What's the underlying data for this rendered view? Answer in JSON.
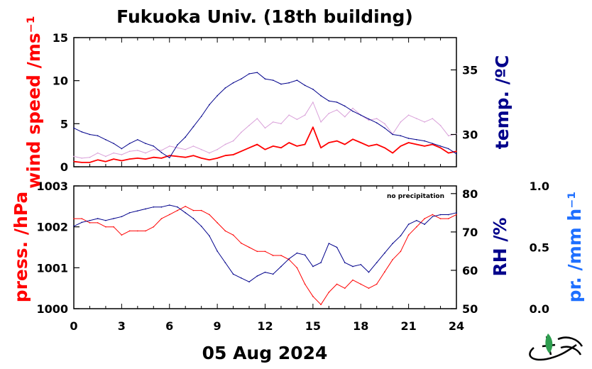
{
  "title": "Fukuoka Univ. (18th building)",
  "date": "05 Aug 2024",
  "precip_note": "no precipitation",
  "colors": {
    "wind": "#ff0000",
    "wind_raw": "#d9a0d9",
    "temp": "#00008b",
    "pressure": "#ff0000",
    "rh": "#00008b",
    "precip": "#1e6fff",
    "logo_green": "#2e9e4f"
  },
  "chart_data": [
    {
      "type": "line",
      "panel": "top",
      "xlim": [
        0,
        24
      ],
      "xticks": [
        0,
        3,
        6,
        9,
        12,
        15,
        18,
        21,
        24
      ],
      "y_left": {
        "label": "wind speed /ms⁻¹",
        "lim": [
          0,
          15
        ],
        "ticks": [
          0,
          5,
          10,
          15
        ]
      },
      "y_right": {
        "label": "temp. /ºC",
        "lim": [
          27.5,
          37.5
        ],
        "ticks": [
          30,
          35
        ]
      },
      "series": [
        {
          "axis": "left",
          "style": "10-min mean",
          "x": [
            0,
            0.5,
            1,
            1.5,
            2,
            2.5,
            3,
            3.5,
            4,
            4.5,
            5,
            5.5,
            6,
            6.5,
            7,
            7.5,
            8,
            8.5,
            9,
            9.5,
            10,
            10.5,
            11,
            11.5,
            12,
            12.5,
            13,
            13.5,
            14,
            14.5,
            15,
            15.5,
            16,
            16.5,
            17,
            17.5,
            18,
            18.5,
            19,
            19.5,
            20,
            20.5,
            21,
            21.5,
            22,
            22.5,
            23,
            23.5,
            24
          ],
          "values": [
            0.6,
            0.5,
            0.5,
            0.8,
            0.6,
            0.9,
            0.7,
            0.9,
            1.0,
            0.9,
            1.1,
            1.0,
            1.3,
            1.2,
            1.1,
            1.3,
            1.0,
            0.8,
            1.0,
            1.3,
            1.4,
            1.8,
            2.2,
            2.6,
            2.0,
            2.4,
            2.2,
            2.8,
            2.4,
            2.6,
            4.6,
            2.2,
            2.8,
            3.0,
            2.6,
            3.2,
            2.8,
            2.4,
            2.6,
            2.2,
            1.6,
            2.4,
            2.8,
            2.6,
            2.4,
            2.6,
            2.2,
            1.6,
            1.8
          ]
        },
        {
          "axis": "left",
          "style": "1-min peaks",
          "x": [
            0,
            0.5,
            1,
            1.5,
            2,
            2.5,
            3,
            3.5,
            4,
            4.5,
            5,
            5.5,
            6,
            6.5,
            7,
            7.5,
            8,
            8.5,
            9,
            9.5,
            10,
            10.5,
            11,
            11.5,
            12,
            12.5,
            13,
            13.5,
            14,
            14.5,
            15,
            15.5,
            16,
            16.5,
            17,
            17.5,
            18,
            18.5,
            19,
            19.5,
            20,
            20.5,
            21,
            21.5,
            22,
            22.5,
            23,
            23.5,
            24
          ],
          "values": [
            1.2,
            1.0,
            1.1,
            1.6,
            1.2,
            1.6,
            1.4,
            1.8,
            1.9,
            1.6,
            2.0,
            1.9,
            2.4,
            2.2,
            2.0,
            2.4,
            2.0,
            1.6,
            2.0,
            2.6,
            3.0,
            4.0,
            4.8,
            5.6,
            4.5,
            5.2,
            5.0,
            6.0,
            5.5,
            6.0,
            7.5,
            5.2,
            6.2,
            6.6,
            5.8,
            6.8,
            6.0,
            5.4,
            5.6,
            5.0,
            3.8,
            5.2,
            6.0,
            5.6,
            5.2,
            5.6,
            4.8,
            3.6,
            3.8
          ]
        },
        {
          "axis": "right",
          "x": [
            0,
            0.5,
            1,
            1.5,
            2,
            2.5,
            3,
            3.5,
            4,
            4.5,
            5,
            5.5,
            6,
            6.5,
            7,
            7.5,
            8,
            8.5,
            9,
            9.5,
            10,
            10.5,
            11,
            11.5,
            12,
            12.5,
            13,
            13.5,
            14,
            14.5,
            15,
            15.5,
            16,
            16.5,
            17,
            17.5,
            18,
            18.5,
            19,
            19.5,
            20,
            20.5,
            21,
            21.5,
            22,
            22.5,
            23,
            23.5,
            24
          ],
          "values": [
            30.5,
            30.2,
            30.0,
            29.9,
            29.6,
            29.3,
            28.9,
            29.3,
            29.6,
            29.3,
            29.1,
            28.6,
            28.2,
            29.2,
            29.8,
            30.6,
            31.4,
            32.3,
            33.0,
            33.6,
            34.0,
            34.3,
            34.7,
            34.8,
            34.3,
            34.2,
            33.9,
            34.0,
            34.2,
            33.8,
            33.5,
            33.0,
            32.6,
            32.5,
            32.2,
            31.8,
            31.5,
            31.2,
            30.9,
            30.5,
            30.0,
            29.9,
            29.7,
            29.6,
            29.5,
            29.3,
            29.1,
            28.9,
            28.5
          ]
        }
      ]
    },
    {
      "type": "line",
      "panel": "bottom",
      "xlabel": "05 Aug 2024",
      "xlim": [
        0,
        24
      ],
      "xticks": [
        0,
        3,
        6,
        9,
        12,
        15,
        18,
        21,
        24
      ],
      "y_left": {
        "label": "press. /hPa",
        "lim": [
          1000,
          1003
        ],
        "ticks": [
          1000,
          1001,
          1002,
          1003
        ]
      },
      "y_right": {
        "label": "RH /%",
        "lim": [
          50,
          82
        ],
        "ticks": [
          50,
          60,
          70,
          80
        ]
      },
      "y_right2": {
        "label": "pr. /mm h⁻¹",
        "lim": [
          0.0,
          1.0
        ],
        "ticks": [
          "0.0",
          "0.5",
          "1.0"
        ]
      },
      "series": [
        {
          "axis": "left",
          "x": [
            0,
            0.5,
            1,
            1.5,
            2,
            2.5,
            3,
            3.5,
            4,
            4.5,
            5,
            5.5,
            6,
            6.5,
            7,
            7.5,
            8,
            8.5,
            9,
            9.5,
            10,
            10.5,
            11,
            11.5,
            12,
            12.5,
            13,
            13.5,
            14,
            14.5,
            15,
            15.5,
            16,
            16.5,
            17,
            17.5,
            18,
            18.5,
            19,
            19.5,
            20,
            20.5,
            21,
            21.5,
            22,
            22.5,
            23,
            23.5,
            24
          ],
          "values": [
            1002.2,
            1002.2,
            1002.1,
            1002.1,
            1002.0,
            1002.0,
            1001.8,
            1001.9,
            1001.9,
            1001.9,
            1002.0,
            1002.2,
            1002.3,
            1002.4,
            1002.5,
            1002.4,
            1002.4,
            1002.3,
            1002.1,
            1001.9,
            1001.8,
            1001.6,
            1001.5,
            1001.4,
            1001.4,
            1001.3,
            1001.3,
            1001.2,
            1001.0,
            1000.6,
            1000.3,
            1000.1,
            1000.4,
            1000.6,
            1000.5,
            1000.7,
            1000.6,
            1000.5,
            1000.6,
            1000.9,
            1001.2,
            1001.4,
            1001.8,
            1002.0,
            1002.2,
            1002.3,
            1002.2,
            1002.2,
            1002.3
          ]
        },
        {
          "axis": "right",
          "x": [
            0,
            0.5,
            1,
            1.5,
            2,
            2.5,
            3,
            3.5,
            4,
            4.5,
            5,
            5.5,
            6,
            6.5,
            7,
            7.5,
            8,
            8.5,
            9,
            9.5,
            10,
            10.5,
            11,
            11.5,
            12,
            12.5,
            13,
            13.5,
            14,
            14.5,
            15,
            15.5,
            16,
            16.5,
            17,
            17.5,
            18,
            18.5,
            19,
            19.5,
            20,
            20.5,
            21,
            21.5,
            22,
            22.5,
            23,
            23.5,
            24
          ],
          "values": [
            71.5,
            72.5,
            73,
            73.5,
            73,
            73.5,
            74,
            75,
            75.5,
            76,
            76.5,
            76.5,
            77,
            76.5,
            75,
            73.5,
            71.5,
            69,
            65,
            62,
            59,
            58,
            57,
            58.5,
            59.5,
            59,
            61,
            63,
            64.5,
            64,
            61,
            62,
            67,
            66,
            62,
            61,
            61.5,
            59.5,
            62,
            64.5,
            67,
            69,
            72,
            73,
            72,
            74,
            74.5,
            74.5,
            75
          ]
        },
        {
          "axis": "right2",
          "x": [
            0,
            24
          ],
          "values": [
            0.0,
            0.0
          ]
        }
      ]
    }
  ]
}
